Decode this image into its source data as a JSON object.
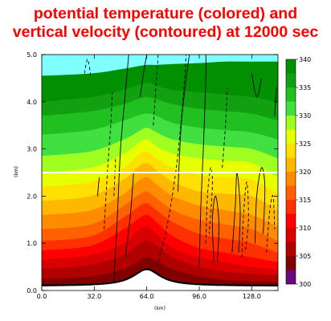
{
  "chart_data": {
    "type": "heatmap",
    "title": [
      "potential temperature (colored) and",
      "vertical velocity (contoured) at 12000 sec"
    ],
    "xlabel": "(km)",
    "ylabel": "(km)",
    "xlim": [
      0,
      144
    ],
    "ylim": [
      0,
      5
    ],
    "x_ticks": [
      "0.0",
      "32.0",
      "64.0",
      "96.0",
      "128.0"
    ],
    "x_tick_values": [
      0,
      32,
      64,
      96,
      128
    ],
    "y_ticks": [
      "0.0",
      "1.0",
      "2.0",
      "3.0",
      "4.0",
      "5.0"
    ],
    "y_tick_values": [
      0,
      1,
      2,
      3,
      4,
      5
    ],
    "colorbar": {
      "labels": [
        "300",
        "305",
        "310",
        "315",
        "320",
        "325",
        "330",
        "335",
        "340"
      ],
      "levels": [
        300,
        302.5,
        305,
        307.5,
        310,
        312.5,
        315,
        317.5,
        320,
        322.5,
        325,
        327.5,
        330,
        332.5,
        335,
        337.5,
        340
      ],
      "colors": [
        "#6a0a7a",
        "#800000",
        "#b00000",
        "#d80000",
        "#ff0000",
        "#ff3000",
        "#ff6000",
        "#ff8c00",
        "#ffb800",
        "#ffe000",
        "#e8ff00",
        "#a0ff20",
        "#40e040",
        "#20c020",
        "#10a010",
        "#009000",
        "#80ffff"
      ]
    },
    "theta_levels_km": {
      "x": [
        0,
        30,
        50,
        58,
        64,
        70,
        80,
        96,
        112,
        128,
        144
      ],
      "rows": [
        [
          0.08,
          0.1,
          0.15,
          0.22,
          0.3,
          0.24,
          0.16,
          0.1,
          0.08,
          0.07,
          0.06
        ],
        [
          0.25,
          0.3,
          0.45,
          0.6,
          0.7,
          0.62,
          0.45,
          0.3,
          0.22,
          0.2,
          0.18
        ],
        [
          0.45,
          0.55,
          0.75,
          0.95,
          1.05,
          0.95,
          0.7,
          0.5,
          0.4,
          0.35,
          0.32
        ],
        [
          0.65,
          0.75,
          1.0,
          1.25,
          1.35,
          1.2,
          0.9,
          0.7,
          0.6,
          0.5,
          0.45
        ],
        [
          0.85,
          0.95,
          1.3,
          1.5,
          1.6,
          1.45,
          1.15,
          0.9,
          0.8,
          0.7,
          0.6
        ],
        [
          1.05,
          1.15,
          1.55,
          1.75,
          1.85,
          1.7,
          1.45,
          1.2,
          1.1,
          1.0,
          0.8
        ],
        [
          1.3,
          1.4,
          1.8,
          2.0,
          2.1,
          1.95,
          1.7,
          1.5,
          1.4,
          1.3,
          1.05
        ],
        [
          1.6,
          1.7,
          2.05,
          2.3,
          2.4,
          2.25,
          2.0,
          1.8,
          1.7,
          1.6,
          1.35
        ],
        [
          1.9,
          2.0,
          2.35,
          2.6,
          2.7,
          2.55,
          2.3,
          2.1,
          2.05,
          2.0,
          1.7
        ],
        [
          2.2,
          2.3,
          2.6,
          2.85,
          2.95,
          2.8,
          2.6,
          2.45,
          2.4,
          2.35,
          2.05
        ],
        [
          2.5,
          2.6,
          2.9,
          3.1,
          3.2,
          3.05,
          2.9,
          2.8,
          2.75,
          2.7,
          2.4
        ],
        [
          2.85,
          2.95,
          3.2,
          3.35,
          3.45,
          3.35,
          3.2,
          3.1,
          3.05,
          3.0,
          2.8
        ],
        [
          3.3,
          3.4,
          3.6,
          3.7,
          3.75,
          3.7,
          3.55,
          3.45,
          3.4,
          3.35,
          3.2
        ],
        [
          3.7,
          3.8,
          3.95,
          4.05,
          4.1,
          4.05,
          3.95,
          3.85,
          3.8,
          3.75,
          3.6
        ],
        [
          4.0,
          4.1,
          4.25,
          4.35,
          4.4,
          4.35,
          4.25,
          4.2,
          4.15,
          4.1,
          4.0
        ],
        [
          4.55,
          4.6,
          4.7,
          4.75,
          4.78,
          4.78,
          4.8,
          4.82,
          4.85,
          4.85,
          4.85
        ]
      ]
    },
    "terrain": {
      "peak_x": 64,
      "peak_height": 0.45,
      "base_height": 0.1,
      "halfwidth": 10
    },
    "reference_line_y": 2.5,
    "contours": {
      "solid": [
        [
          [
            44,
            0.2
          ],
          [
            46,
            1.5
          ],
          [
            48,
            3.0
          ],
          [
            51,
            4.2
          ],
          [
            53,
            5.0
          ]
        ],
        [
          [
            51,
            0.7
          ],
          [
            54,
            1.6
          ],
          [
            56,
            2.5
          ]
        ],
        [
          [
            96,
            0.5
          ],
          [
            97,
            1.8
          ],
          [
            98.5,
            3.0
          ],
          [
            100,
            4.5
          ],
          [
            100,
            5.0
          ]
        ],
        [
          [
            105,
            0.6
          ],
          [
            104,
            1.5
          ],
          [
            106,
            2.0
          ],
          [
            108,
            1.4
          ],
          [
            107,
            0.6
          ]
        ],
        [
          [
            116,
            0.8
          ],
          [
            118,
            1.8
          ],
          [
            119,
            2.5
          ],
          [
            121,
            1.7
          ],
          [
            120,
            0.8
          ]
        ],
        [
          [
            130,
            1.0
          ],
          [
            131,
            2.0
          ],
          [
            134,
            2.6
          ],
          [
            136,
            2.2
          ],
          [
            135,
            1.2
          ]
        ],
        [
          [
            83,
            2.1
          ],
          [
            85,
            3.5
          ],
          [
            88,
            4.5
          ],
          [
            90,
            5.0
          ]
        ],
        [
          [
            60,
            4.1
          ],
          [
            62,
            4.6
          ],
          [
            64,
            5.0
          ]
        ],
        [
          [
            128,
            4.6
          ],
          [
            131,
            4.1
          ],
          [
            134,
            4.5
          ]
        ],
        [
          [
            142,
            3.7
          ],
          [
            143,
            4.3
          ]
        ],
        [
          [
            34,
            2.0
          ],
          [
            35,
            2.4
          ]
        ]
      ],
      "dashed": [
        [
          [
            38,
            1.3
          ],
          [
            40,
            2.5
          ],
          [
            42,
            3.5
          ],
          [
            43,
            4.2
          ]
        ],
        [
          [
            70,
            0.5
          ],
          [
            76,
            1.3
          ],
          [
            82,
            2.6
          ],
          [
            86,
            4.0
          ],
          [
            88,
            5.0
          ]
        ],
        [
          [
            100,
            1.0
          ],
          [
            101,
            2.0
          ],
          [
            103,
            2.6
          ],
          [
            104,
            2.2
          ],
          [
            102,
            1.2
          ]
        ],
        [
          [
            122,
            0.7
          ],
          [
            123,
            1.6
          ],
          [
            125,
            2.3
          ],
          [
            126,
            1.5
          ],
          [
            124,
            0.8
          ]
        ],
        [
          [
            137,
            0.8
          ],
          [
            139,
            1.7
          ],
          [
            141,
            2.0
          ],
          [
            142,
            1.3
          ]
        ],
        [
          [
            26,
            4.6
          ],
          [
            28,
            4.9
          ],
          [
            30,
            4.5
          ]
        ],
        [
          [
            44,
            2.0
          ],
          [
            45,
            2.8
          ]
        ],
        [
          [
            68,
            3.5
          ],
          [
            70,
            4.5
          ],
          [
            71,
            5.0
          ]
        ],
        [
          [
            110,
            2.6
          ],
          [
            112,
            3.5
          ],
          [
            113,
            4.3
          ]
        ]
      ]
    }
  }
}
